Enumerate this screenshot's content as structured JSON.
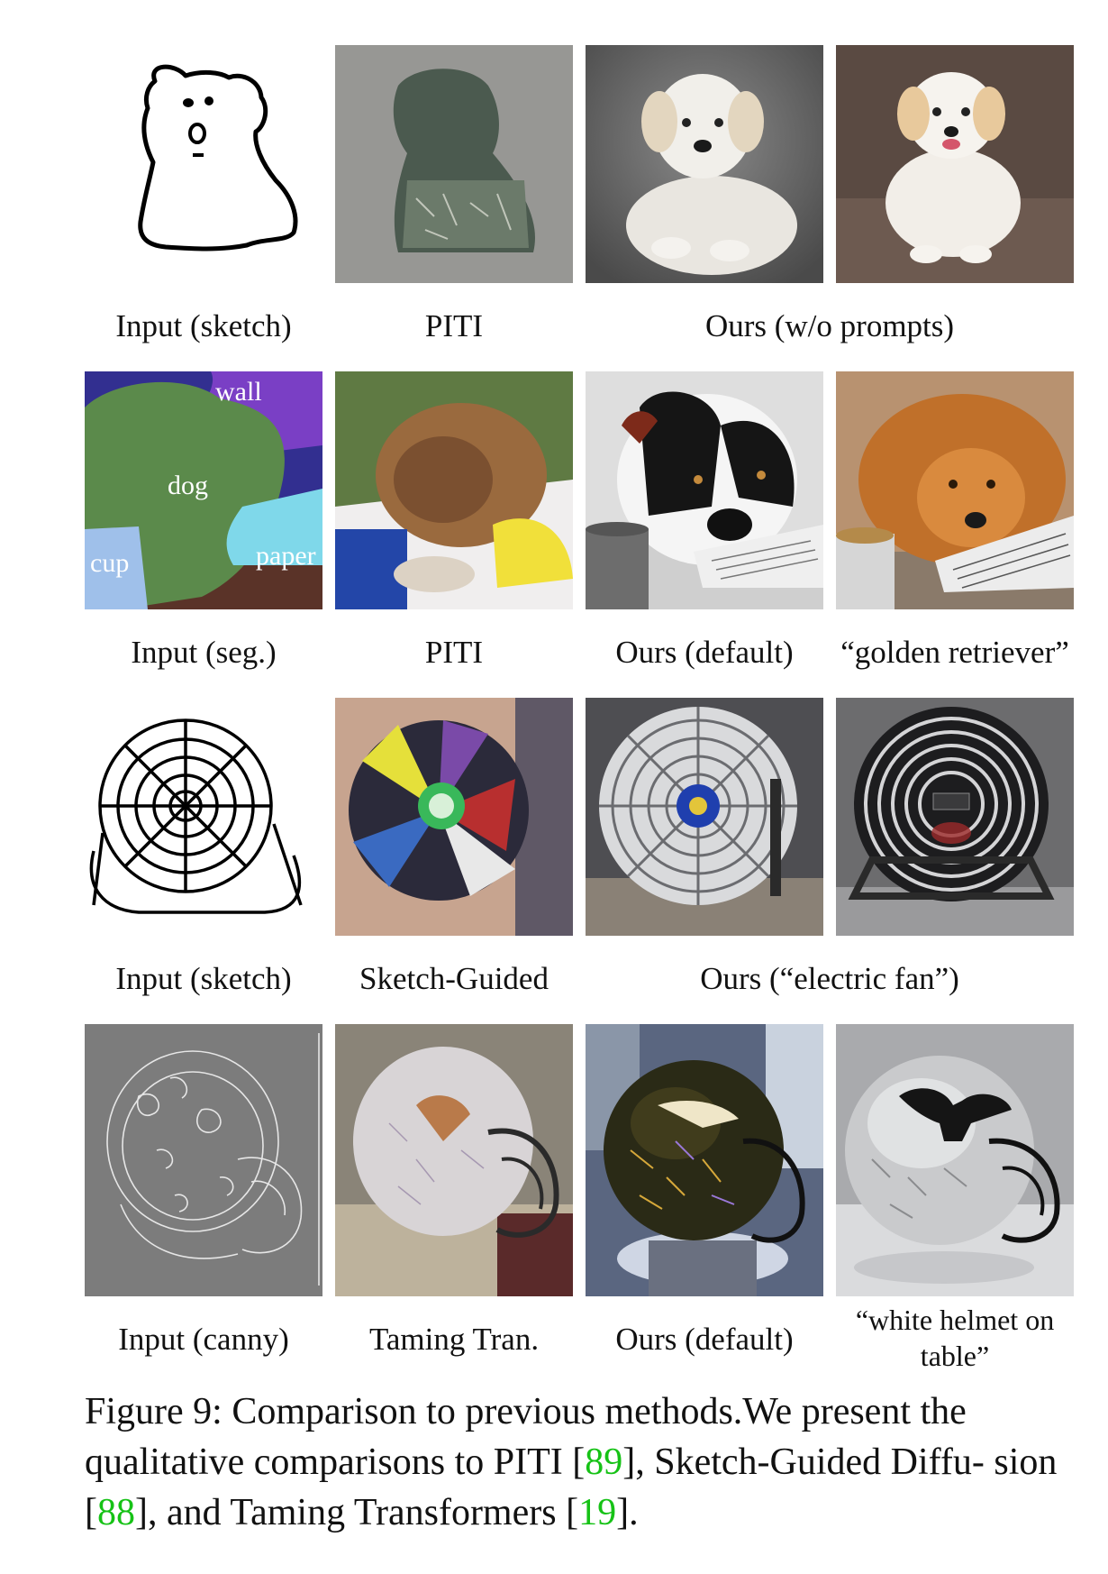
{
  "figure": {
    "rows": [
      {
        "panels": [
          "sketch-dog",
          "piti-dog",
          "ours-dog-1",
          "ours-dog-2"
        ],
        "captions": [
          "Input (sketch)",
          "PITI",
          "Ours (w/o prompts)"
        ]
      },
      {
        "panels": [
          "seg-map",
          "piti-dog-2",
          "ours-default-dog",
          "golden-retriever"
        ],
        "seg_labels": [
          "wall",
          "dog",
          "cup",
          "paper"
        ],
        "captions": [
          "Input (seg.)",
          "PITI",
          "Ours (default)",
          "“golden retriever”"
        ]
      },
      {
        "panels": [
          "sketch-fan",
          "sketch-guided-fan",
          "ours-fan-1",
          "ours-fan-2"
        ],
        "captions": [
          "Input (sketch)",
          "Sketch-Guided",
          "Ours (“electric fan”)"
        ]
      },
      {
        "panels": [
          "canny-helmet",
          "taming-helmet",
          "ours-default-helmet",
          "white-helmet"
        ],
        "captions": [
          "Input (canny)",
          "Taming Tran.",
          "Ours (default)",
          "“white helmet on table”"
        ]
      }
    ],
    "caption": {
      "prefix": "Figure 9: Comparison to previous methods.We present the qualitative comparisons to PITI [",
      "ref1": "89",
      "mid1": "], Sketch-Guided Diffu- sion [",
      "ref2": "88",
      "mid2": "], and Taming Transformers [",
      "ref3": "19",
      "suffix": "]."
    }
  }
}
